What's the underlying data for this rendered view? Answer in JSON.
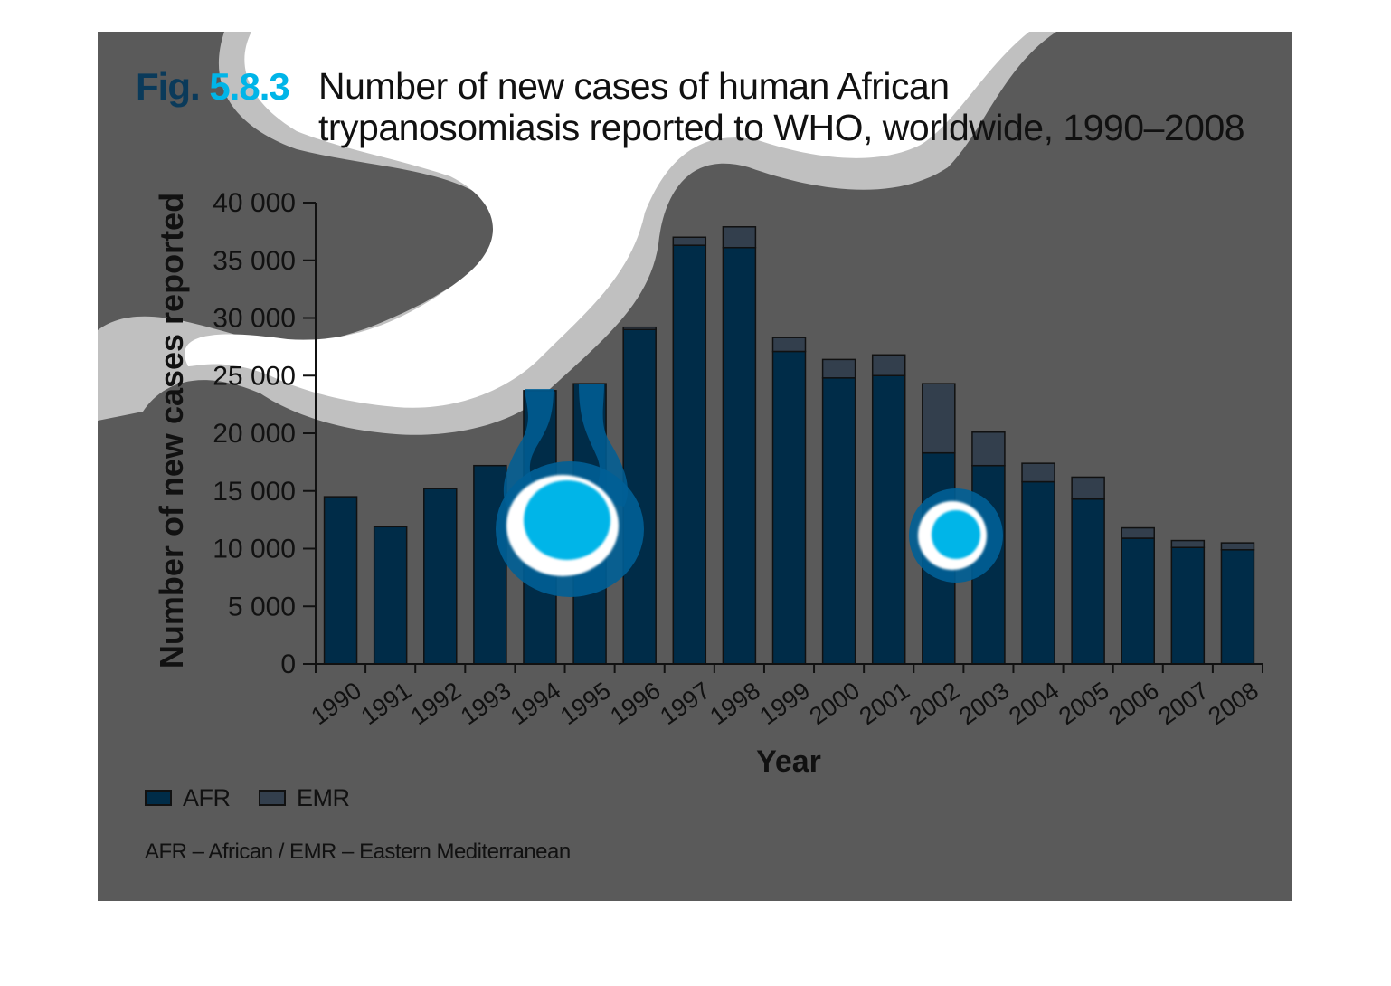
{
  "figure": {
    "fig_word": "Fig.",
    "fig_number": "5.8.3",
    "title_line1": "Number of new cases of human African",
    "title_line2": "trypanosomiasis reported to WHO, worldwide, 1990–2008"
  },
  "legend": {
    "afr": "AFR",
    "emr": "EMR"
  },
  "note": "AFR – African / EMR – Eastern Mediterranean",
  "colors": {
    "panel_bg": "#5a5a5a",
    "afr": "#002c48",
    "emr": "#333f4d",
    "fig_word": "#0a3a5a",
    "fig_number": "#00b5e8",
    "highlight_cyan": "#00b5e8",
    "highlight_blue": "#005f96"
  },
  "chart_data": {
    "type": "bar",
    "stacked": true,
    "xlabel": "Year",
    "ylabel": "Number of new cases reported",
    "ylim": [
      0,
      40000
    ],
    "yticks": [
      0,
      5000,
      10000,
      15000,
      20000,
      25000,
      30000,
      35000,
      40000
    ],
    "ytick_labels": [
      "0",
      "5 000",
      "10 000",
      "15 000",
      "20 000",
      "25 000",
      "30 000",
      "35 000",
      "40 000"
    ],
    "categories": [
      "1990",
      "1991",
      "1992",
      "1993",
      "1994",
      "1995",
      "1996",
      "1997",
      "1998",
      "1999",
      "2000",
      "2001",
      "2002",
      "2003",
      "2004",
      "2005",
      "2006",
      "2007",
      "2008"
    ],
    "series": [
      {
        "name": "AFR",
        "values": [
          14500,
          11900,
          15200,
          17200,
          23700,
          24300,
          29000,
          36300,
          36100,
          27100,
          24800,
          25000,
          18300,
          17200,
          15800,
          14300,
          10900,
          10100,
          9900
        ]
      },
      {
        "name": "EMR",
        "values": [
          0,
          0,
          0,
          0,
          0,
          0,
          200,
          700,
          1800,
          1200,
          1600,
          1800,
          6000,
          2900,
          1600,
          1900,
          900,
          600,
          600
        ]
      }
    ],
    "legend_position": "bottom-left",
    "grid": false
  }
}
